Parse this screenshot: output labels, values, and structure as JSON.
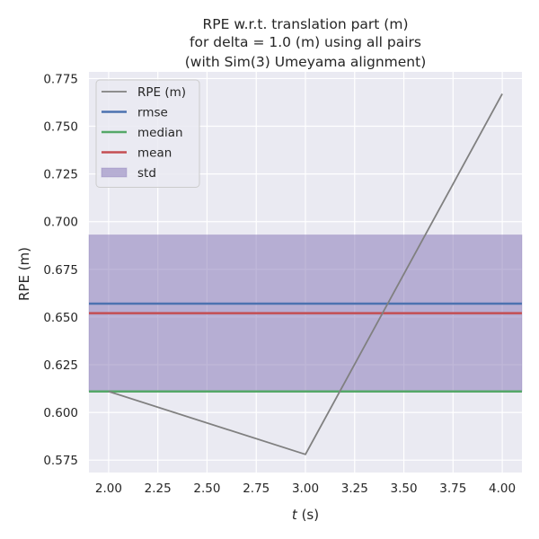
{
  "chart_data": {
    "type": "line",
    "title_lines": [
      "RPE w.r.t. translation part (m)",
      "for delta = 1.0 (m) using all pairs",
      "(with Sim(3) Umeyama alignment)"
    ],
    "xlabel_italic": "t",
    "xlabel_rest": " (s)",
    "ylabel": "RPE (m)",
    "xlim": [
      1.9,
      4.1
    ],
    "ylim": [
      0.5685,
      0.7785
    ],
    "x_ticks": [
      "2.00",
      "2.25",
      "2.50",
      "2.75",
      "3.00",
      "3.25",
      "3.50",
      "3.75",
      "4.00"
    ],
    "y_ticks": [
      "0.575",
      "0.600",
      "0.625",
      "0.650",
      "0.675",
      "0.700",
      "0.725",
      "0.750",
      "0.775"
    ],
    "grid": true,
    "legend_position": "top-left",
    "series": [
      {
        "name": "RPE (m)",
        "color": "#808080",
        "x": [
          2.0,
          3.0,
          4.0
        ],
        "y": [
          0.611,
          0.578,
          0.767
        ]
      }
    ],
    "hlines": [
      {
        "name": "rmse",
        "color": "#4c72b0",
        "value": 0.657
      },
      {
        "name": "median",
        "color": "#55a868",
        "value": 0.611
      },
      {
        "name": "mean",
        "color": "#c44e52",
        "value": 0.652
      }
    ],
    "band": {
      "name": "std",
      "color": "#8172b3",
      "lower": 0.611,
      "upper": 0.693
    }
  }
}
